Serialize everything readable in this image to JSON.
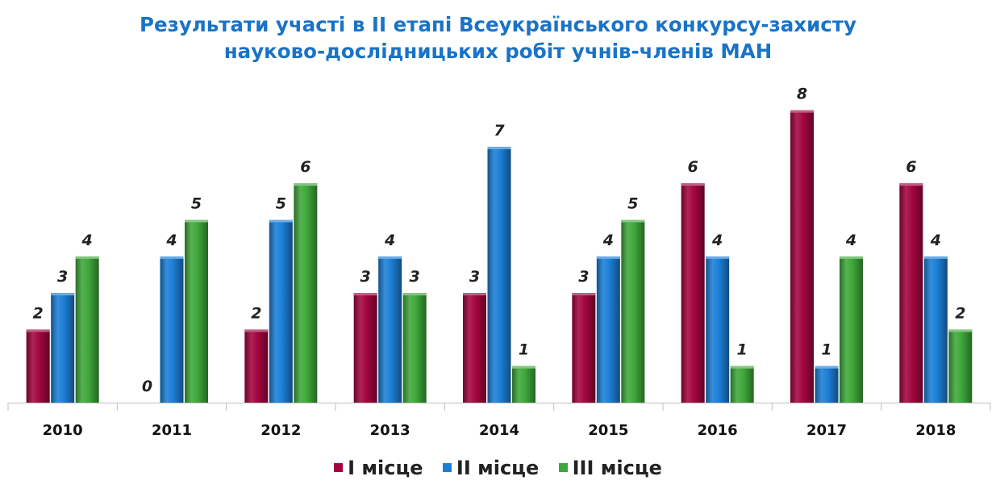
{
  "title": {
    "line1": "Результати участі в ІІ етапі Всеукраїнського конкурсу-захисту",
    "line2": "науково-дослідницьких робіт учнів-членів МАН"
  },
  "chart_data": {
    "type": "bar",
    "categories": [
      "2010",
      "2011",
      "2012",
      "2013",
      "2014",
      "2015",
      "2016",
      "2017",
      "2018"
    ],
    "series": [
      {
        "name": "І місце",
        "color": "#a3063f",
        "values": [
          2,
          0,
          2,
          3,
          3,
          3,
          6,
          8,
          6
        ]
      },
      {
        "name": "ІІ місце",
        "color": "#1c7fd6",
        "values": [
          3,
          4,
          5,
          4,
          7,
          4,
          4,
          1,
          4
        ]
      },
      {
        "name": "ІІІ місце",
        "color": "#3fa83a",
        "values": [
          4,
          5,
          6,
          3,
          1,
          5,
          1,
          4,
          2
        ]
      }
    ],
    "ylim": [
      0,
      8.5
    ],
    "grid": false,
    "legend": "bottom",
    "data_labels": true
  }
}
